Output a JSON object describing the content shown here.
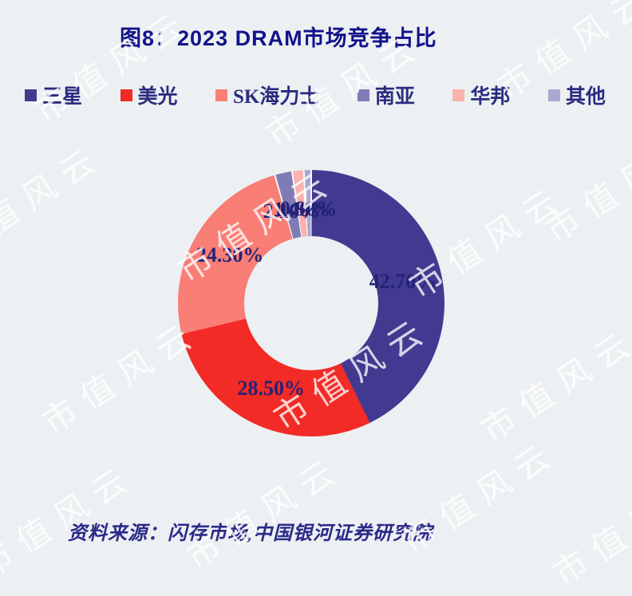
{
  "page": {
    "background": "#EDF0F2"
  },
  "header": {
    "title": "图8：2023 DRAM市场竞争占比"
  },
  "source": {
    "text": "资料来源：闪存市场,中国银河证券研究院"
  },
  "watermark": {
    "text": "市值风云"
  },
  "colors": {
    "background": "#EDF0F2",
    "title_text": "#12128C",
    "legend_text": "#2B2B80",
    "label_text": "#232276",
    "source_text": "#2B2A8A",
    "separator": "#F7F8FA"
  },
  "chart_data": {
    "type": "pie",
    "subtype": "donut",
    "title": "2023 DRAM市场竞争占比",
    "legend_position": "top",
    "start_angle": "top",
    "direction": "clockwise",
    "inner_radius_ratio": 0.5,
    "values_format": "0.00%",
    "categories": [
      "三星",
      "美光",
      "SK海力士",
      "南亚",
      "华邦",
      "其他"
    ],
    "values": [
      42.7,
      28.5,
      24.3,
      2.1,
      1.4,
      0.9
    ],
    "segments": [
      {
        "label": "三星",
        "value": 42.7,
        "display": "42.70%",
        "color": "#423A90"
      },
      {
        "label": "美光",
        "value": 28.5,
        "display": "28.50%",
        "color": "#F22B26"
      },
      {
        "label": "SK海力士",
        "value": 24.3,
        "display": "24.30%",
        "color": "#F97E75"
      },
      {
        "label": "南亚",
        "value": 2.1,
        "display": "2.10%",
        "color": "#7F7CB5"
      },
      {
        "label": "华邦",
        "value": 1.4,
        "display": "1.40%",
        "color": "#FBB1AD"
      },
      {
        "label": "其他",
        "value": 0.9,
        "display": "0.90%",
        "color": "#ABA7D3"
      }
    ]
  }
}
